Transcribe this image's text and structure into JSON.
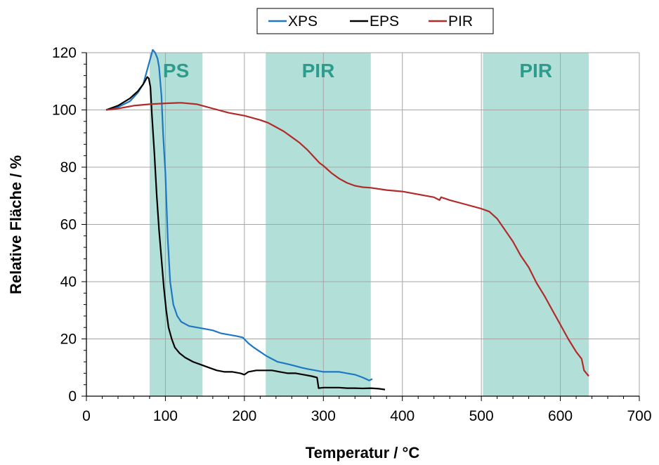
{
  "chart_data": {
    "type": "line",
    "xlabel": "Temperatur / °C",
    "ylabel": "Relative Fläche / %",
    "xlim": [
      0,
      700
    ],
    "ylim": [
      0,
      120
    ],
    "xticks": [
      0,
      100,
      200,
      300,
      400,
      500,
      600,
      700
    ],
    "yticks": [
      0,
      20,
      40,
      60,
      80,
      100,
      120
    ],
    "grid": true,
    "legend_position": "top-center",
    "band_color": "#b2e0d8",
    "band_label_color": "#2e9c8c",
    "bands": [
      {
        "label": "PS",
        "x_start": 80,
        "x_end": 147
      },
      {
        "label": "PIR",
        "x_start": 227,
        "x_end": 360
      },
      {
        "label": "PIR",
        "x_start": 502,
        "x_end": 636
      }
    ],
    "series": [
      {
        "name": "XPS",
        "color": "#1f77c4",
        "x": [
          25,
          40,
          55,
          65,
          72,
          76,
          80,
          84,
          87,
          90,
          92,
          95,
          97,
          100,
          103,
          106,
          110,
          115,
          120,
          130,
          140,
          150,
          160,
          170,
          180,
          190,
          198,
          205,
          212,
          220,
          228,
          235,
          242,
          250,
          258,
          265,
          272,
          280,
          290,
          300,
          310,
          320,
          330,
          340,
          350,
          358,
          362
        ],
        "y": [
          100,
          101,
          103,
          106,
          109,
          113,
          117,
          121,
          120,
          118,
          115,
          105,
          92,
          78,
          55,
          40,
          32,
          28,
          26,
          24.5,
          24,
          23.5,
          23,
          22,
          21.5,
          21,
          20.5,
          18.5,
          17,
          15.5,
          14,
          13,
          12,
          11.5,
          11,
          10.5,
          10,
          9.5,
          9,
          8.5,
          8.5,
          8.5,
          8,
          7.5,
          6.5,
          5.5,
          6
        ]
      },
      {
        "name": "EPS",
        "color": "#000000",
        "x": [
          25,
          40,
          55,
          65,
          72,
          77,
          79,
          81,
          83,
          86,
          89,
          92,
          95,
          98,
          101,
          104,
          108,
          112,
          118,
          125,
          135,
          145,
          155,
          165,
          175,
          185,
          195,
          200,
          205,
          215,
          225,
          235,
          245,
          255,
          265,
          275,
          285,
          292,
          294,
          300,
          310,
          320,
          330,
          340,
          350,
          360,
          370,
          378
        ],
        "y": [
          100,
          101.5,
          104,
          106.5,
          109,
          111.5,
          111,
          108,
          98,
          85,
          70,
          58,
          48,
          38,
          30,
          24,
          20,
          17,
          15,
          13.5,
          12,
          11,
          10,
          9,
          8.5,
          8.5,
          8,
          7.5,
          8.5,
          9,
          9,
          9,
          8.5,
          8,
          8,
          7.5,
          7,
          6.5,
          2.8,
          3,
          3,
          3,
          2.8,
          2.8,
          2.7,
          2.8,
          2.6,
          2.3
        ]
      },
      {
        "name": "PIR",
        "color": "#b22a2a",
        "x": [
          25,
          40,
          60,
          80,
          100,
          120,
          140,
          160,
          180,
          200,
          220,
          230,
          240,
          250,
          260,
          270,
          280,
          290,
          295,
          300,
          310,
          320,
          330,
          340,
          350,
          360,
          380,
          400,
          420,
          440,
          447,
          449,
          460,
          480,
          500,
          510,
          520,
          530,
          540,
          550,
          560,
          570,
          580,
          590,
          600,
          610,
          620,
          627,
          630,
          636
        ],
        "y": [
          100,
          100.5,
          101.5,
          102,
          102.3,
          102.5,
          102,
          100.5,
          99,
          98,
          96.5,
          95.5,
          94,
          92.5,
          90.5,
          88.5,
          86,
          83,
          81.5,
          80.5,
          78,
          76,
          74.5,
          73.5,
          73,
          72.8,
          72,
          71.5,
          70.5,
          69.5,
          68.5,
          69.5,
          68.5,
          67,
          65.5,
          64.5,
          62,
          58,
          54,
          49,
          45,
          39.5,
          35,
          30,
          25,
          20,
          15.5,
          13,
          9,
          7
        ]
      }
    ]
  }
}
